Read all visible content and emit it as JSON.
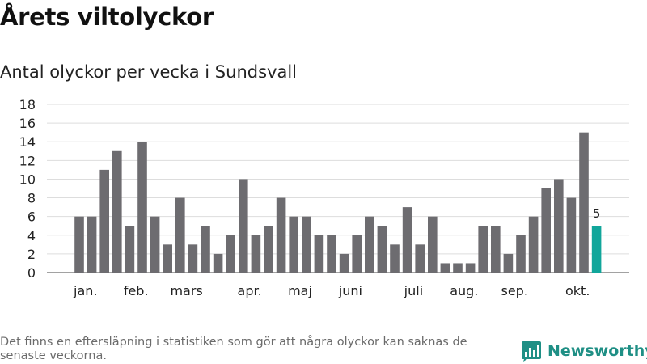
{
  "header": {
    "title": "Årets viltolyckor",
    "subtitle": "Antal olyckor per vecka i Sundsvall"
  },
  "footer": {
    "note": "Det finns en eftersläpning i statistiken som gör att några olyckor kan saknas de senaste veckorna.",
    "brand": "Newsworthy",
    "logo_icon": "bar-chart-icon"
  },
  "colors": {
    "bar": "#6d6c70",
    "highlight": "#11a69b",
    "brand": "#1f8f85"
  },
  "chart_data": {
    "type": "bar",
    "title": "Årets viltolyckor",
    "subtitle": "Antal olyckor per vecka i Sundsvall",
    "xlabel": "",
    "ylabel": "",
    "ylim": [
      0,
      18
    ],
    "yticks": [
      0,
      2,
      4,
      6,
      8,
      10,
      12,
      14,
      16,
      18
    ],
    "grid": true,
    "weeks": [
      1,
      2,
      3,
      4,
      5,
      6,
      7,
      8,
      9,
      10,
      11,
      12,
      13,
      14,
      15,
      16,
      17,
      18,
      19,
      20,
      21,
      22,
      23,
      24,
      25,
      26,
      27,
      28,
      29,
      30,
      31,
      32,
      33,
      34,
      35,
      36,
      37,
      38,
      39,
      40,
      41,
      42
    ],
    "values": [
      6,
      6,
      11,
      13,
      5,
      14,
      6,
      3,
      8,
      3,
      5,
      2,
      4,
      10,
      4,
      5,
      8,
      6,
      6,
      4,
      4,
      2,
      4,
      6,
      5,
      3,
      7,
      3,
      6,
      1,
      1,
      1,
      5,
      5,
      2,
      4,
      6,
      9,
      10,
      8,
      15,
      5
    ],
    "month_labels": [
      {
        "label": "jan.",
        "week": 1.5
      },
      {
        "label": "feb.",
        "week": 5.5
      },
      {
        "label": "mars",
        "week": 9.5
      },
      {
        "label": "apr.",
        "week": 14.5
      },
      {
        "label": "maj",
        "week": 18.5
      },
      {
        "label": "juni",
        "week": 22.5
      },
      {
        "label": "juli",
        "week": 27.5
      },
      {
        "label": "aug.",
        "week": 31.5
      },
      {
        "label": "sep.",
        "week": 35.5
      },
      {
        "label": "okt.",
        "week": 40.5
      }
    ],
    "highlight_index": 41,
    "highlight_label": "5"
  }
}
